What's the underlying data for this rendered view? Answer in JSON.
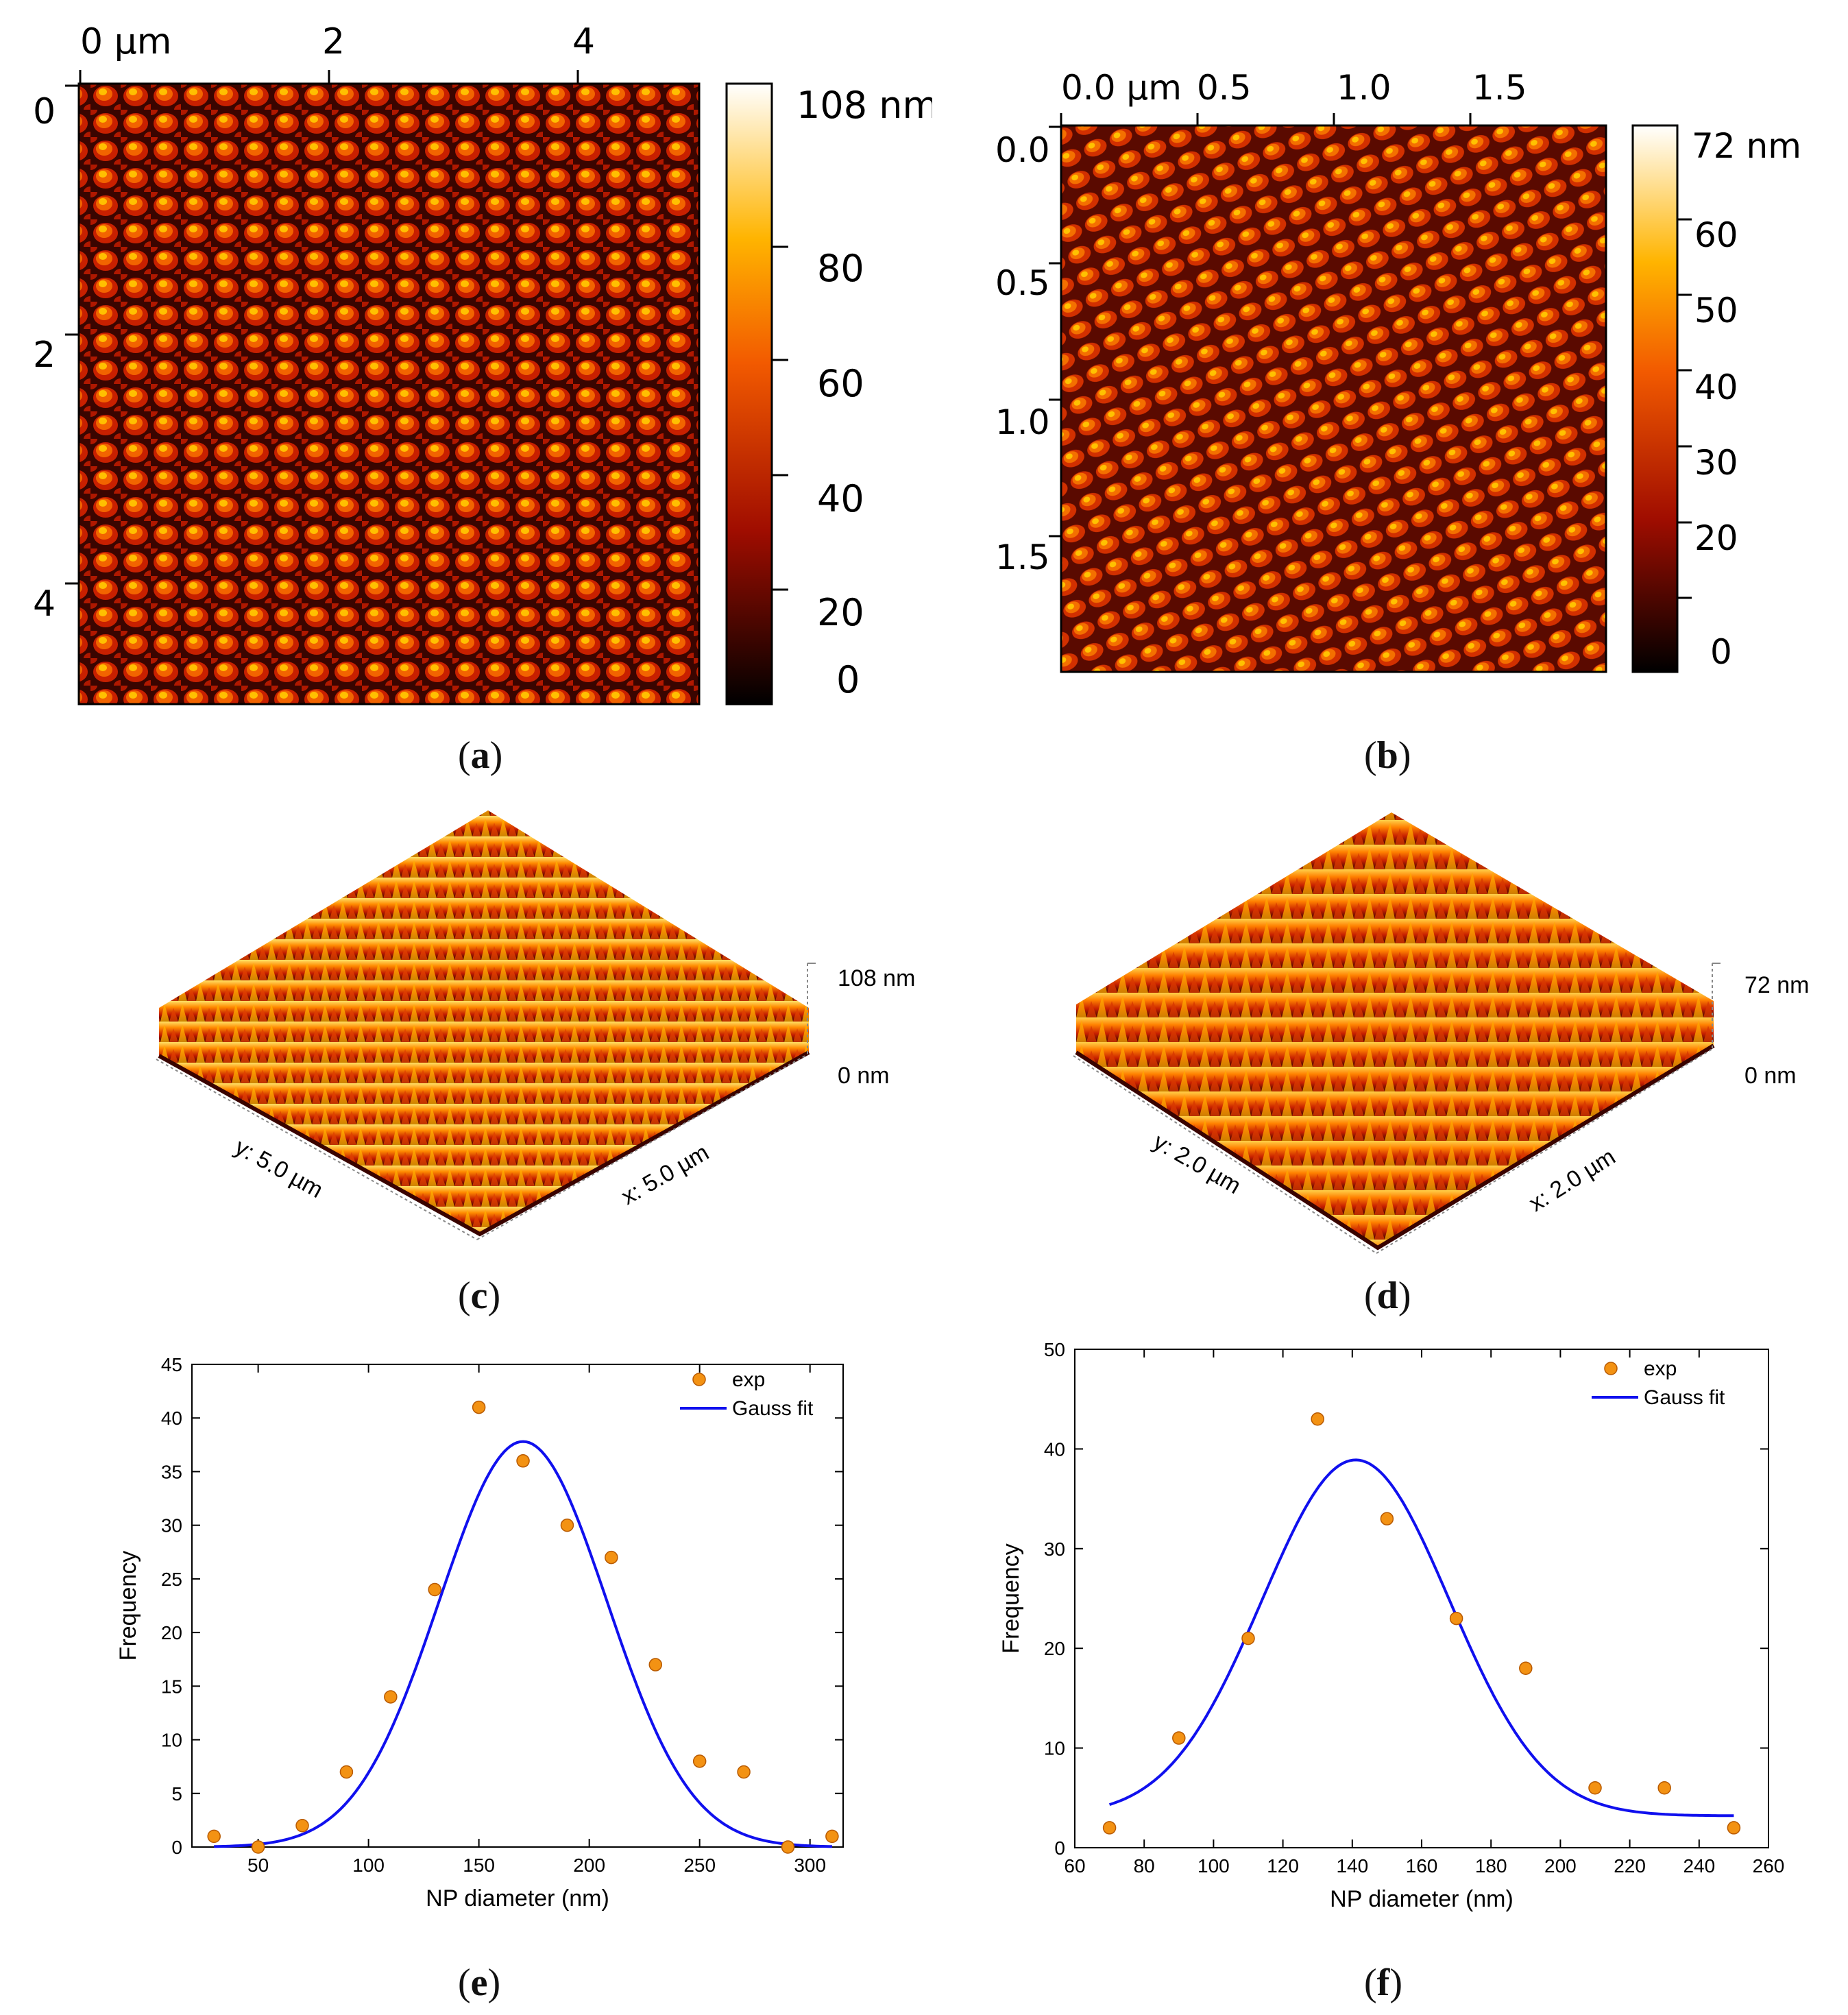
{
  "palette": {
    "afm_low": "#000000",
    "afm_mid": "#c01500",
    "afm_midhi": "#ff7a00",
    "afm_high": "#ffffff",
    "scatter": "#f39213",
    "fit": "#1010ee",
    "axis": "#000000"
  },
  "panels": {
    "a": {
      "caption_letter": "a",
      "x_ticks": [
        "0 µm",
        "2",
        "4"
      ],
      "y_ticks": [
        "0",
        "2",
        "4"
      ],
      "colorbar_ticks": [
        "108 nm",
        "80",
        "60",
        "40",
        "20",
        "0"
      ],
      "colorbar_max_nm": 108
    },
    "b": {
      "caption_letter": "b",
      "x_ticks": [
        "0.0 µm",
        "0.5",
        "1.0",
        "1.5"
      ],
      "y_ticks": [
        "0.0",
        "0.5",
        "1.0",
        "1.5"
      ],
      "colorbar_ticks": [
        "72 nm",
        "60",
        "50",
        "40",
        "30",
        "20",
        "0"
      ],
      "colorbar_max_nm": 72
    },
    "c": {
      "caption_letter": "c",
      "z_top": "108 nm",
      "z_bottom": "0 nm",
      "y_axis": "y: 5.0 µm",
      "x_axis": "x: 5.0 µm"
    },
    "d": {
      "caption_letter": "d",
      "z_top": "72 nm",
      "z_bottom": "0 nm",
      "y_axis": "y: 2.0 µm",
      "x_axis": "x: 2.0 µm"
    },
    "e": {
      "caption_letter": "e"
    },
    "f": {
      "caption_letter": "f"
    }
  },
  "chart_data": [
    {
      "id": "e",
      "type": "scatter",
      "xlabel": "NP diameter (nm)",
      "ylabel": "Frequency",
      "xlim": [
        20,
        315
      ],
      "ylim": [
        0,
        45
      ],
      "x_ticks": [
        50,
        100,
        150,
        200,
        250,
        300
      ],
      "y_ticks": [
        0,
        5,
        10,
        15,
        20,
        25,
        30,
        35,
        40,
        45
      ],
      "legend": {
        "position": "top-right",
        "entries": [
          "exp",
          "Gauss fit"
        ]
      },
      "series": [
        {
          "name": "exp",
          "kind": "points",
          "x": [
            30,
            50,
            70,
            90,
            110,
            130,
            150,
            170,
            190,
            210,
            230,
            250,
            270,
            290,
            310
          ],
          "y": [
            1,
            0,
            2,
            7,
            14,
            24,
            41,
            36,
            30,
            27,
            17,
            8,
            7,
            0,
            1
          ]
        },
        {
          "name": "Gauss fit",
          "kind": "gauss",
          "y0": 0,
          "A": 37.8,
          "xc": 170,
          "sigma": 38,
          "xmin": 30,
          "xmax": 310
        }
      ]
    },
    {
      "id": "f",
      "type": "scatter",
      "xlabel": "NP diameter (nm)",
      "ylabel": "Frequency",
      "xlim": [
        60,
        260
      ],
      "ylim": [
        0,
        50
      ],
      "x_ticks": [
        60,
        80,
        100,
        120,
        140,
        160,
        180,
        200,
        220,
        240,
        260
      ],
      "y_ticks": [
        0,
        10,
        20,
        30,
        40,
        50
      ],
      "legend": {
        "position": "top-right",
        "entries": [
          "exp",
          "Gauss fit"
        ]
      },
      "series": [
        {
          "name": "exp",
          "kind": "points",
          "x": [
            70,
            90,
            110,
            130,
            150,
            170,
            190,
            210,
            230,
            250
          ],
          "y": [
            2,
            11,
            21,
            43,
            33,
            23,
            18,
            6,
            6,
            2
          ]
        },
        {
          "name": "Gauss fit",
          "kind": "gauss",
          "y0": 3.2,
          "A": 35.7,
          "xc": 141,
          "sigma": 27,
          "xmin": 70,
          "xmax": 250
        }
      ]
    }
  ]
}
